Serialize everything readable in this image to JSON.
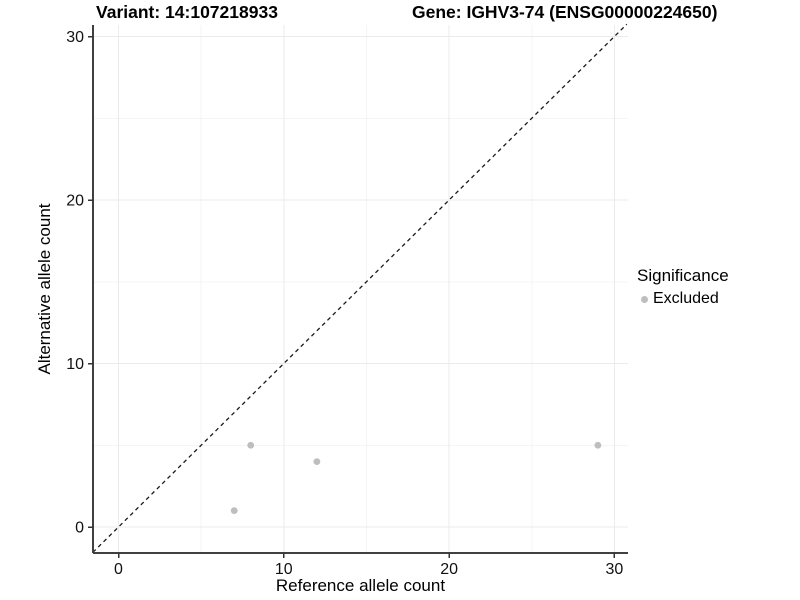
{
  "chart_data": {
    "type": "scatter",
    "title_left": "Variant: 14:107218933",
    "title_right": "Gene: IGHV3-74 (ENSG00000224650)",
    "xlabel": "Reference allele count",
    "ylabel": "Alternative allele count",
    "xlim": [
      -1.55,
      30.75
    ],
    "ylim": [
      -1.55,
      30.75
    ],
    "x_ticks": [
      0,
      10,
      20,
      30
    ],
    "y_ticks": [
      0,
      10,
      20,
      30
    ],
    "x_minor_ticks": [
      5,
      15,
      25
    ],
    "y_minor_ticks": [
      5,
      15,
      25
    ],
    "grid": "major+minor",
    "diagonal_line": {
      "style": "dashed",
      "slope": 1,
      "intercept": 0,
      "from": -1.55,
      "to": 30.75
    },
    "series": [
      {
        "name": "Excluded",
        "color": "#bebebe",
        "points": [
          {
            "x": 7,
            "y": 1
          },
          {
            "x": 8,
            "y": 5
          },
          {
            "x": 12,
            "y": 4
          },
          {
            "x": 29,
            "y": 5
          }
        ]
      }
    ],
    "legend": {
      "title": "Significance",
      "position": "right",
      "items": [
        {
          "label": "Excluded",
          "color": "#bebebe"
        }
      ]
    },
    "colors": {
      "background": "#ffffff",
      "grid_major": "#ebebeb",
      "grid_minor": "#f5f5f5",
      "axis_line": "#404040",
      "tick_mark": "#333333",
      "tick_label": "#111111",
      "diagonal": "#1a1a1a",
      "point": "#bebebe",
      "text": "#000000"
    }
  }
}
